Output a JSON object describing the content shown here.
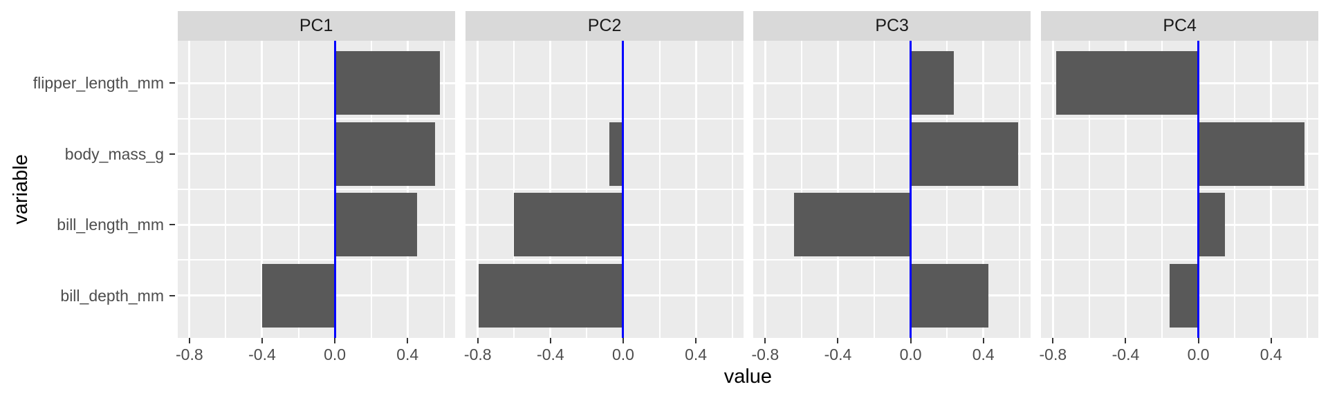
{
  "chart_data": {
    "type": "bar",
    "orientation": "horizontal",
    "title": "",
    "xlabel": "value",
    "ylabel": "variable",
    "facets": [
      "PC1",
      "PC2",
      "PC3",
      "PC4"
    ],
    "categories": [
      "flipper_length_mm",
      "body_mass_g",
      "bill_length_mm",
      "bill_depth_mm"
    ],
    "series": [
      {
        "name": "PC1",
        "values": [
          0.577,
          0.55,
          0.454,
          -0.399
        ]
      },
      {
        "name": "PC2",
        "values": [
          -0.006,
          -0.077,
          -0.6,
          -0.797
        ]
      },
      {
        "name": "PC3",
        "values": [
          0.236,
          0.592,
          -0.642,
          0.426
        ]
      },
      {
        "name": "PC4",
        "values": [
          -0.782,
          0.585,
          0.145,
          -0.16
        ]
      }
    ],
    "x_ticks": [
      -0.8,
      -0.4,
      0.0,
      0.4
    ],
    "x_tick_labels": [
      "-0.8",
      "-0.4",
      "0.0",
      "0.4"
    ],
    "x_minor_ticks": [
      -0.6,
      -0.2,
      0.2,
      0.6
    ],
    "xlim": [
      -0.866,
      0.661
    ],
    "zero_line_x": 0.0,
    "grid": true,
    "legend": "none",
    "colors": {
      "bar": "#595959",
      "zero_line": "#0000FF",
      "panel_bg": "#EBEBEB",
      "strip_bg": "#D9D9D9",
      "grid": "#FFFFFF",
      "axis_text": "#4D4D4D",
      "strip_text": "#1A1A1A",
      "title_text": "#000000",
      "tick_mark": "#333333"
    }
  }
}
